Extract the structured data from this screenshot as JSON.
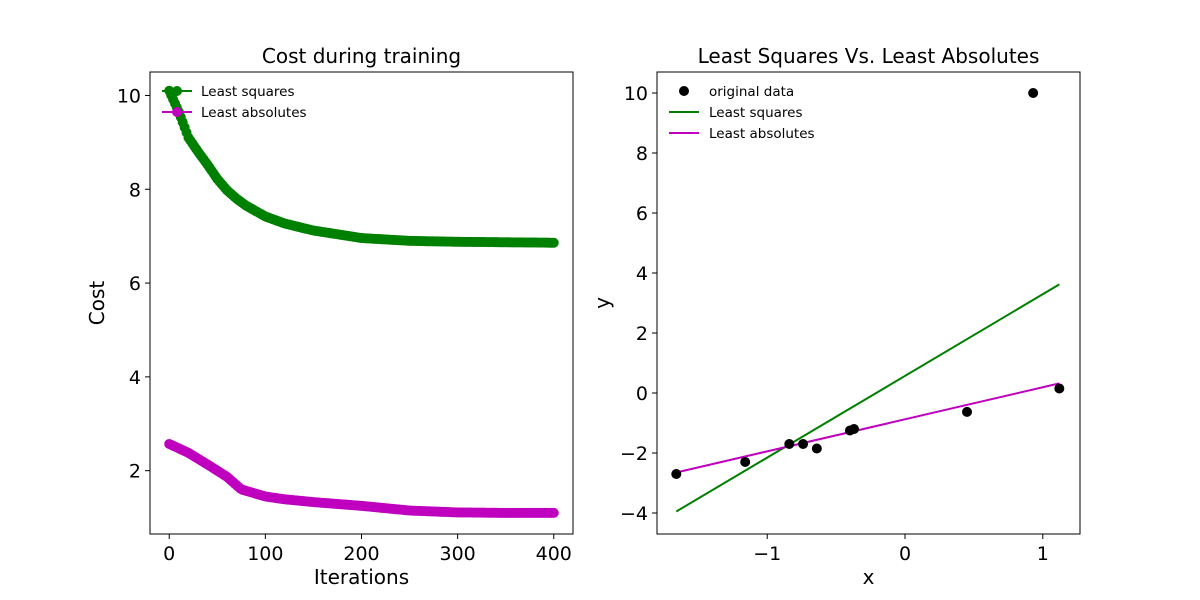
{
  "chart_data": [
    {
      "type": "line",
      "title": "Cost during training",
      "xlabel": "Iterations",
      "ylabel": "Cost",
      "xlim": [
        -20,
        420
      ],
      "ylim": [
        0.65,
        10.5
      ],
      "xticks": [
        0,
        100,
        200,
        300,
        400
      ],
      "yticks": [
        2,
        4,
        6,
        8,
        10
      ],
      "grid": false,
      "legend_position": "top-left",
      "series": [
        {
          "name": "Least squares",
          "color": "#008000",
          "marker": "circle",
          "x": [
            0,
            10,
            20,
            30,
            40,
            50,
            60,
            70,
            80,
            100,
            120,
            150,
            200,
            250,
            300,
            350,
            400
          ],
          "y": [
            10.1,
            9.65,
            9.1,
            8.8,
            8.52,
            8.22,
            7.98,
            7.8,
            7.65,
            7.42,
            7.27,
            7.12,
            6.96,
            6.9,
            6.88,
            6.87,
            6.86
          ]
        },
        {
          "name": "Least absolutes",
          "color": "#BF00BF",
          "marker": "circle",
          "x": [
            0,
            20,
            40,
            60,
            75,
            100,
            120,
            150,
            200,
            250,
            300,
            350,
            400
          ],
          "y": [
            2.57,
            2.38,
            2.13,
            1.87,
            1.6,
            1.45,
            1.39,
            1.33,
            1.25,
            1.15,
            1.11,
            1.1,
            1.1
          ]
        }
      ]
    },
    {
      "type": "scatter",
      "title": "Least Squares Vs. Least Absolutes",
      "xlabel": "x",
      "ylabel": "y",
      "xlim": [
        -1.8,
        1.27
      ],
      "ylim": [
        -4.7,
        10.7
      ],
      "xticks": [
        -1,
        0,
        1
      ],
      "xtick_labels": [
        "−1",
        "0",
        "1"
      ],
      "yticks": [
        -4,
        -2,
        0,
        2,
        4,
        6,
        8,
        10
      ],
      "ytick_labels": [
        "−4",
        "−2",
        "0",
        "2",
        "4",
        "6",
        "8",
        "10"
      ],
      "grid": false,
      "legend_position": "top-left",
      "points": {
        "name": "original data",
        "color": "#000000",
        "x": [
          -1.66,
          -1.16,
          -0.84,
          -0.74,
          -0.64,
          -0.4,
          -0.37,
          0.45,
          0.93,
          1.12
        ],
        "y": [
          -2.7,
          -2.3,
          -1.7,
          -1.7,
          -1.85,
          -1.25,
          -1.2,
          -0.63,
          10.0,
          0.15
        ]
      },
      "lines": [
        {
          "name": "Least squares",
          "color": "#008000",
          "x": [
            -1.66,
            1.12
          ],
          "y": [
            -3.95,
            3.62
          ]
        },
        {
          "name": "Least absolutes",
          "color": "#BF00BF",
          "x": [
            -1.66,
            1.12
          ],
          "y": [
            -2.65,
            0.32
          ]
        }
      ]
    }
  ]
}
